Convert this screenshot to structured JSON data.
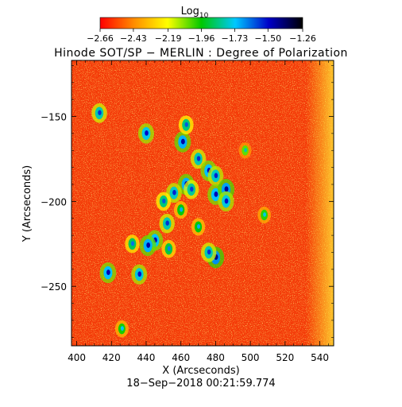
{
  "chart_data": {
    "type": "heatmap",
    "title": "Hinode SOT/SP − MERLIN : Degree of Polarization",
    "subtitle": "18−Sep−2018 00:21:59.774",
    "xlabel": "X (Arcseconds)",
    "ylabel": "Y (Arcseconds)",
    "xlim": [
      397,
      548
    ],
    "ylim": [
      -285,
      -117
    ],
    "x_ticks": [
      400,
      420,
      440,
      460,
      480,
      500,
      520,
      540
    ],
    "y_ticks": [
      -150,
      -200,
      -250
    ],
    "x_tick_labels": [
      "400",
      "420",
      "440",
      "460",
      "480",
      "500",
      "520",
      "540"
    ],
    "y_tick_labels": [
      "−150",
      "−200",
      "−250"
    ],
    "colorbar": {
      "label_base": "Log",
      "label_sub": "10",
      "range": [
        -2.66,
        -1.26
      ],
      "ticks": [
        -2.66,
        -2.43,
        -2.19,
        -1.96,
        -1.73,
        -1.5,
        -1.26
      ],
      "tick_labels": [
        "−2.66",
        "−2.43",
        "−2.19",
        "−1.96",
        "−1.73",
        "−1.50",
        "−1.26"
      ],
      "colors": [
        "#ff0000",
        "#ff8c00",
        "#ffff00",
        "#00c800",
        "#00c8ff",
        "#0000c8",
        "#000000"
      ]
    },
    "background_level": -2.55,
    "features": [
      {
        "x": 413,
        "y": -148,
        "value": -1.8
      },
      {
        "x": 440,
        "y": -160,
        "value": -1.75
      },
      {
        "x": 461,
        "y": -165,
        "value": -1.7
      },
      {
        "x": 463,
        "y": -155,
        "value": -1.85
      },
      {
        "x": 470,
        "y": -175,
        "value": -1.8
      },
      {
        "x": 476,
        "y": -182,
        "value": -1.72
      },
      {
        "x": 480,
        "y": -185,
        "value": -1.78
      },
      {
        "x": 463,
        "y": -190,
        "value": -1.7
      },
      {
        "x": 456,
        "y": -195,
        "value": -1.78
      },
      {
        "x": 466,
        "y": -193,
        "value": -1.82
      },
      {
        "x": 480,
        "y": -196,
        "value": -1.72
      },
      {
        "x": 486,
        "y": -193,
        "value": -1.68
      },
      {
        "x": 486,
        "y": -200,
        "value": -1.76
      },
      {
        "x": 450,
        "y": -200,
        "value": -1.85
      },
      {
        "x": 452,
        "y": -213,
        "value": -1.8
      },
      {
        "x": 445,
        "y": -223,
        "value": -1.72
      },
      {
        "x": 441,
        "y": -226,
        "value": -1.7
      },
      {
        "x": 432,
        "y": -225,
        "value": -1.88
      },
      {
        "x": 453,
        "y": -228,
        "value": -1.9
      },
      {
        "x": 480,
        "y": -233,
        "value": -1.66
      },
      {
        "x": 476,
        "y": -230,
        "value": -1.8
      },
      {
        "x": 436,
        "y": -243,
        "value": -1.76
      },
      {
        "x": 418,
        "y": -242,
        "value": -1.72
      },
      {
        "x": 460,
        "y": -205,
        "value": -1.95
      },
      {
        "x": 470,
        "y": -215,
        "value": -1.95
      },
      {
        "x": 426,
        "y": -275,
        "value": -1.98
      },
      {
        "x": 508,
        "y": -208,
        "value": -2.0
      },
      {
        "x": 497,
        "y": -170,
        "value": -2.05
      }
    ],
    "bright_edge": {
      "from_x": 532,
      "value": -2.2
    }
  }
}
